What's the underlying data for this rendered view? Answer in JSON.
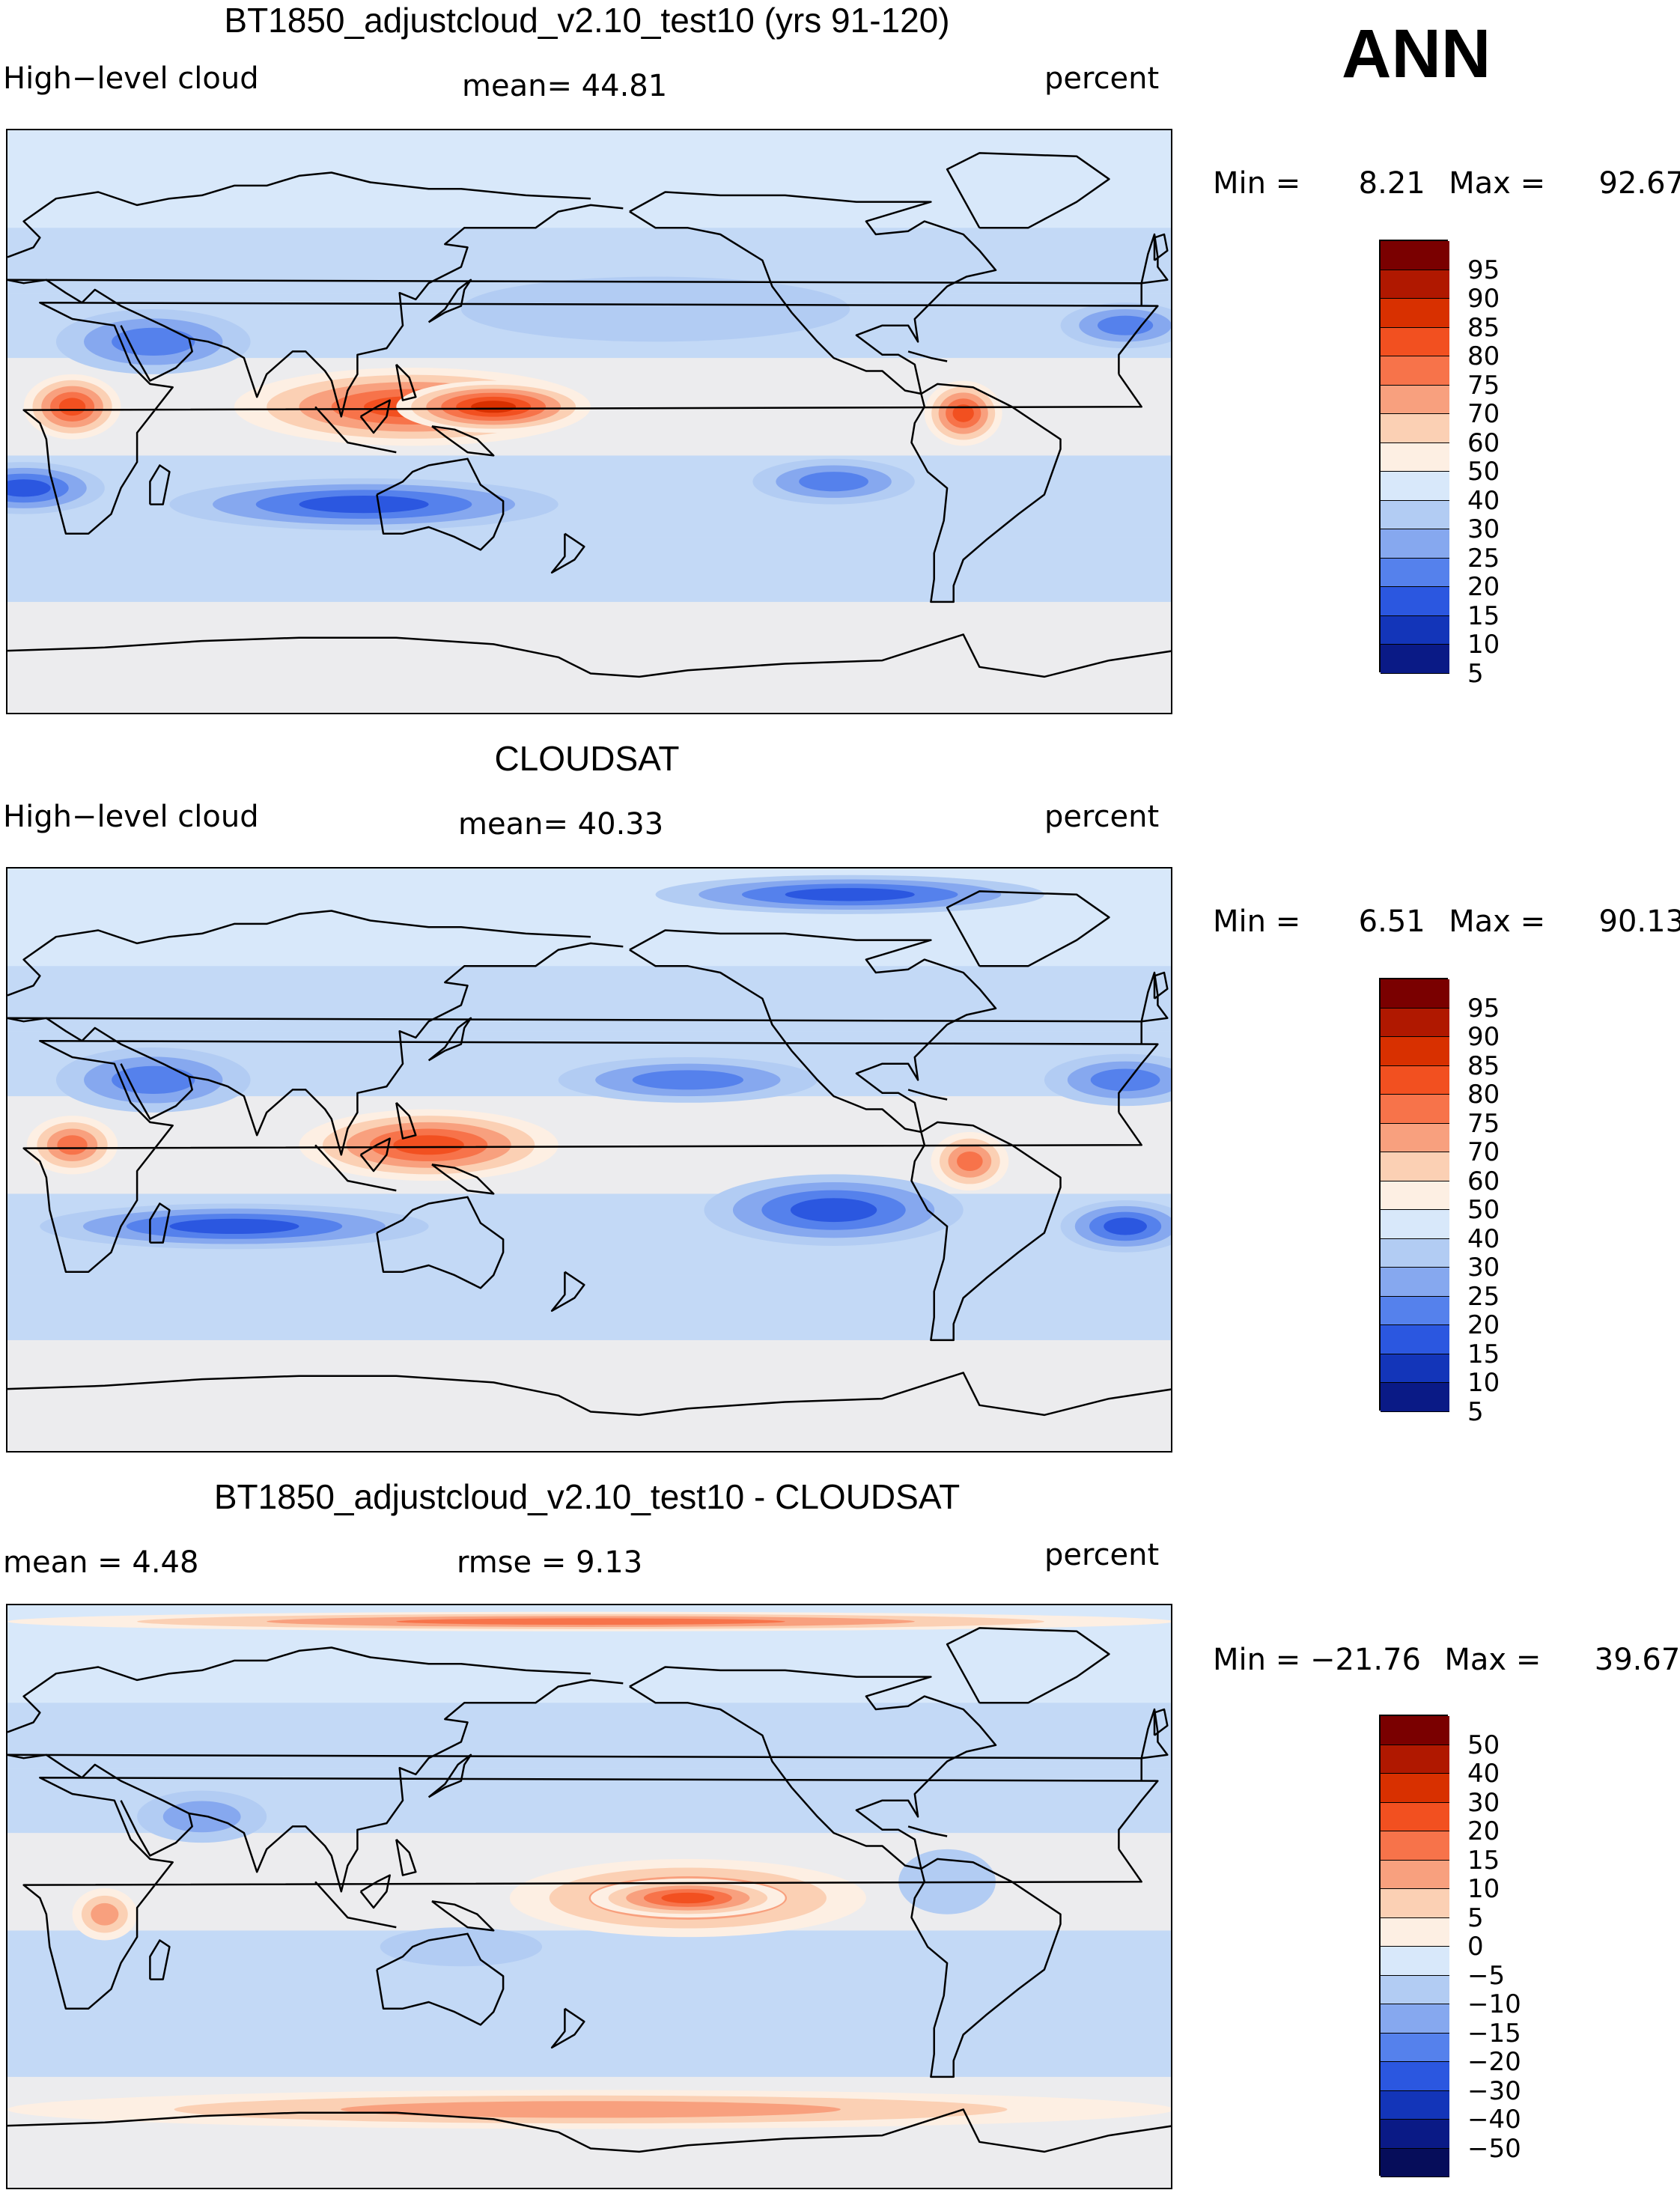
{
  "season": "ANN",
  "chart_data": [
    {
      "type": "heatmap",
      "title": "BT1850_adjustcloud_v2.10_test10 (yrs 91-120)",
      "variable": "High−level cloud",
      "mean_label": "mean=   44.81",
      "units": "percent",
      "min_label": "Min =",
      "min": "8.21",
      "max_label": "Max =",
      "max": "92.67",
      "levels": [
        "95",
        "90",
        "85",
        "80",
        "75",
        "70",
        "60",
        "50",
        "40",
        "30",
        "25",
        "20",
        "15",
        "10",
        "5"
      ],
      "colors": [
        "#7a0000",
        "#b01800",
        "#d83000",
        "#f25020",
        "#f7734a",
        "#f8a07e",
        "#fbd0b4",
        "#fdefe3",
        "#d8e8fa",
        "#b2ccf3",
        "#86a8ef",
        "#5581ec",
        "#2b57e0",
        "#1335b9",
        "#0a1a86"
      ],
      "blobs": [
        {
          "lon": 125,
          "lat": 5,
          "rx": 55,
          "ry": 12,
          "level": 3
        },
        {
          "lon": 150,
          "lat": 5,
          "rx": 30,
          "ry": 8,
          "level": 2
        },
        {
          "lon": 20,
          "lat": 5,
          "rx": 15,
          "ry": 10,
          "level": 3
        },
        {
          "lon": 295,
          "lat": 3,
          "rx": 12,
          "ry": 10,
          "level": 3
        },
        {
          "lon": 45,
          "lat": 25,
          "rx": 30,
          "ry": 10,
          "level": 11
        },
        {
          "lon": 110,
          "lat": -25,
          "rx": 60,
          "ry": 8,
          "level": 12
        },
        {
          "lon": 255,
          "lat": -18,
          "rx": 25,
          "ry": 7,
          "level": 11
        },
        {
          "lon": 345,
          "lat": 30,
          "rx": 20,
          "ry": 7,
          "level": 11
        },
        {
          "lon": 5,
          "lat": -20,
          "rx": 25,
          "ry": 8,
          "level": 12
        },
        {
          "lon": 200,
          "lat": 35,
          "rx": 60,
          "ry": 10,
          "level": 9
        }
      ]
    },
    {
      "type": "heatmap",
      "title": "CLOUDSAT",
      "variable": "High−level cloud",
      "mean_label": "mean=   40.33",
      "units": "percent",
      "min_label": "Min =",
      "min": "6.51",
      "max_label": "Max =",
      "max": "90.13",
      "levels": [
        "95",
        "90",
        "85",
        "80",
        "75",
        "70",
        "60",
        "50",
        "40",
        "30",
        "25",
        "20",
        "15",
        "10",
        "5"
      ],
      "colors": [
        "#7a0000",
        "#b01800",
        "#d83000",
        "#f25020",
        "#f7734a",
        "#f8a07e",
        "#fbd0b4",
        "#fdefe3",
        "#d8e8fa",
        "#b2ccf3",
        "#86a8ef",
        "#5581ec",
        "#2b57e0",
        "#1335b9",
        "#0a1a86"
      ],
      "blobs": [
        {
          "lon": 130,
          "lat": 5,
          "rx": 40,
          "ry": 11,
          "level": 3
        },
        {
          "lon": 20,
          "lat": 5,
          "rx": 14,
          "ry": 9,
          "level": 4
        },
        {
          "lon": 297,
          "lat": 0,
          "rx": 12,
          "ry": 9,
          "level": 4
        },
        {
          "lon": 45,
          "lat": 25,
          "rx": 30,
          "ry": 10,
          "level": 11
        },
        {
          "lon": 70,
          "lat": -20,
          "rx": 60,
          "ry": 7,
          "level": 12
        },
        {
          "lon": 255,
          "lat": -15,
          "rx": 40,
          "ry": 11,
          "level": 12
        },
        {
          "lon": 345,
          "lat": -20,
          "rx": 20,
          "ry": 8,
          "level": 12
        },
        {
          "lon": 210,
          "lat": 25,
          "rx": 40,
          "ry": 7,
          "level": 11
        },
        {
          "lon": 345,
          "lat": 25,
          "rx": 25,
          "ry": 8,
          "level": 11
        },
        {
          "lon": 260,
          "lat": 82,
          "rx": 60,
          "ry": 6,
          "level": 12
        }
      ]
    },
    {
      "type": "heatmap",
      "title": "BT1850_adjustcloud_v2.10_test10 - CLOUDSAT",
      "mean_label": "mean =     4.48",
      "rmse_label": "rmse =     9.13",
      "units": "percent",
      "min_label": "Min =",
      "min": "−21.76",
      "max_label": "Max =",
      "max": "39.67",
      "levels": [
        "50",
        "40",
        "30",
        "20",
        "15",
        "10",
        "5",
        "0",
        "−5",
        "−10",
        "−15",
        "−20",
        "−30",
        "−40",
        "−50"
      ],
      "colors": [
        "#7a0000",
        "#b01800",
        "#d83000",
        "#f25020",
        "#f7734a",
        "#f8a07e",
        "#fbd0b4",
        "#fdefe3",
        "#d8e8fa",
        "#b2ccf3",
        "#86a8ef",
        "#5581ec",
        "#2b57e0",
        "#1335b9",
        "#0a1a86",
        "#060d5a"
      ],
      "blobs": [
        {
          "lon": 210,
          "lat": 0,
          "rx": 55,
          "ry": 12,
          "level": 4
        },
        {
          "lon": 210,
          "lat": 0,
          "rx": 30,
          "ry": 6,
          "level": 3
        },
        {
          "lon": 180,
          "lat": -65,
          "rx": 180,
          "ry": 6,
          "level": 5
        },
        {
          "lon": 180,
          "lat": 85,
          "rx": 180,
          "ry": 3,
          "level": 4
        },
        {
          "lon": 30,
          "lat": -5,
          "rx": 10,
          "ry": 8,
          "level": 5
        },
        {
          "lon": 60,
          "lat": 25,
          "rx": 20,
          "ry": 8,
          "level": 10
        },
        {
          "lon": 140,
          "lat": -15,
          "rx": 25,
          "ry": 6,
          "level": 9
        },
        {
          "lon": 290,
          "lat": 5,
          "rx": 15,
          "ry": 10,
          "level": 9
        }
      ]
    }
  ]
}
